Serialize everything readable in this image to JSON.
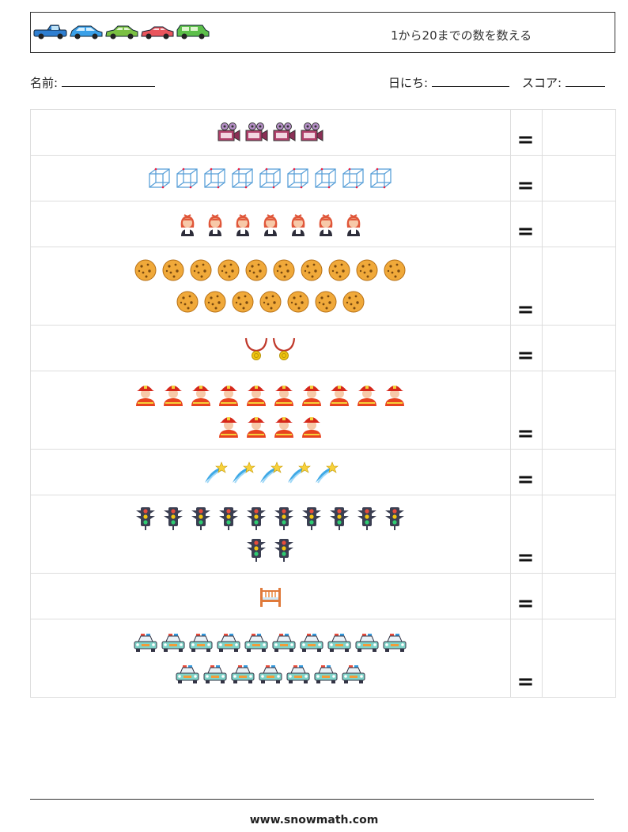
{
  "header": {
    "title": "1から20までの数を数える",
    "decor_icons": [
      "car-pickup-blue",
      "car-hatch-blue",
      "car-sedan-green",
      "car-coupe-red",
      "car-van-green"
    ]
  },
  "fields": {
    "name_label": "名前:",
    "date_label": "日にち:",
    "score_label": "スコア:"
  },
  "problems": [
    {
      "icon": "movie-camera",
      "count": 4,
      "equals": "="
    },
    {
      "icon": "wire-cube",
      "count": 9,
      "equals": "="
    },
    {
      "icon": "girl",
      "count": 7,
      "equals": "="
    },
    {
      "icon": "cookie",
      "count": 17,
      "equals": "="
    },
    {
      "icon": "medal-necklace",
      "count": 2,
      "equals": "="
    },
    {
      "icon": "firefighter",
      "count": 14,
      "equals": "="
    },
    {
      "icon": "shooting-star",
      "count": 5,
      "equals": "="
    },
    {
      "icon": "traffic-light",
      "count": 12,
      "equals": "="
    },
    {
      "icon": "crib",
      "count": 1,
      "equals": "="
    },
    {
      "icon": "police-car",
      "count": 17,
      "equals": "="
    }
  ],
  "footer": {
    "url": "www.snowmath.com"
  },
  "colors": {
    "border": "#dddddd",
    "header_border": "#333333"
  }
}
